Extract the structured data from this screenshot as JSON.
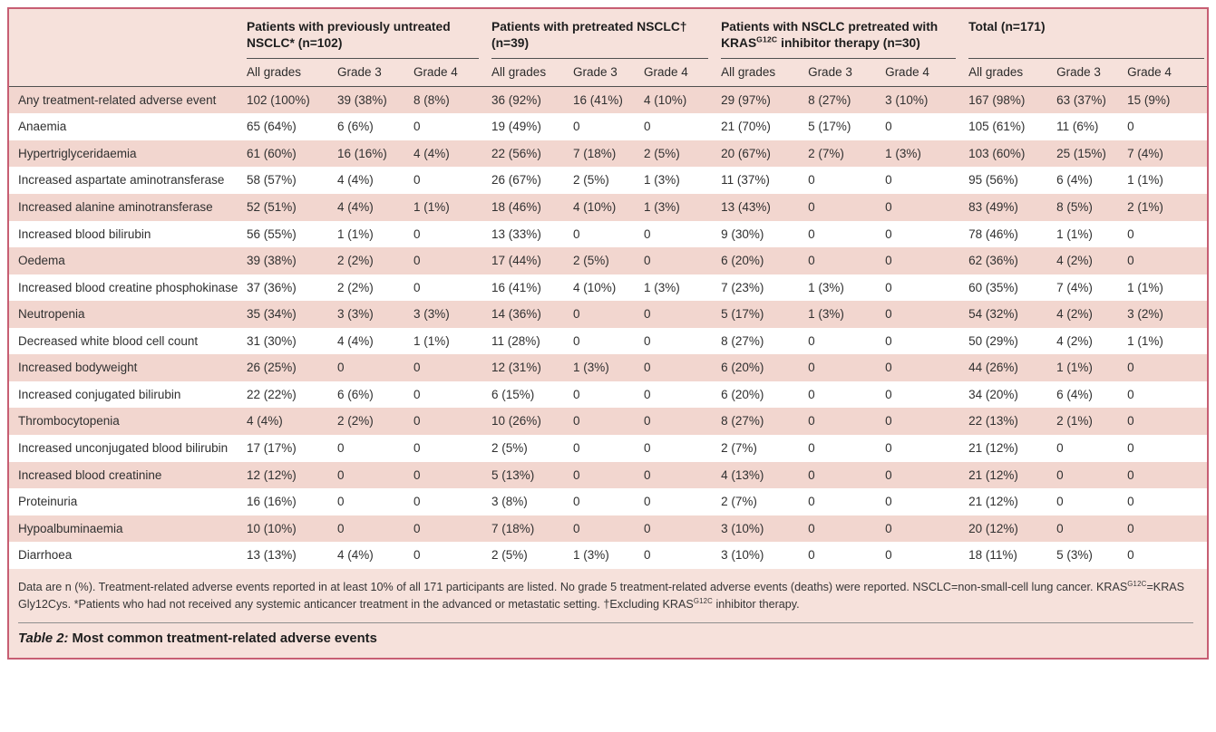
{
  "theme": {
    "panel_bg": "#F6E1DB",
    "stripe_bg": "#F2D6CF",
    "row_bg": "#FFFFFF",
    "border": "#C75E73",
    "rule_dark": "#4F4F4F",
    "rule_gray": "#8E8E8E",
    "text": "#303030"
  },
  "table": {
    "groups": [
      {
        "title": "Patients with previously untreated NSCLC* (n=102)"
      },
      {
        "title": "Patients with pretreated NSCLC† (n=39)"
      },
      {
        "title": "Patients with NSCLC pretreated with KRAS^{G12C} inhibitor therapy (n=30)"
      },
      {
        "title": "Total (n=171)"
      }
    ],
    "subheaders": [
      "All grades",
      "Grade 3",
      "Grade 4"
    ],
    "rows": [
      {
        "label": "Any treatment-related adverse event",
        "values": [
          "102 (100%)",
          "39 (38%)",
          "8 (8%)",
          "36 (92%)",
          "16 (41%)",
          "4 (10%)",
          "29 (97%)",
          "8 (27%)",
          "3 (10%)",
          "167 (98%)",
          "63 (37%)",
          "15 (9%)"
        ]
      },
      {
        "label": "Anaemia",
        "values": [
          "65 (64%)",
          "6 (6%)",
          "0",
          "19 (49%)",
          "0",
          "0",
          "21 (70%)",
          "5 (17%)",
          "0",
          "105 (61%)",
          "11 (6%)",
          "0"
        ]
      },
      {
        "label": "Hypertriglyceridaemia",
        "values": [
          "61 (60%)",
          "16 (16%)",
          "4 (4%)",
          "22 (56%)",
          "7 (18%)",
          "2 (5%)",
          "20 (67%)",
          "2 (7%)",
          "1 (3%)",
          "103 (60%)",
          "25 (15%)",
          "7 (4%)"
        ]
      },
      {
        "label": "Increased aspartate aminotransferase",
        "values": [
          "58 (57%)",
          "4 (4%)",
          "0",
          "26 (67%)",
          "2 (5%)",
          "1 (3%)",
          "11 (37%)",
          "0",
          "0",
          "95 (56%)",
          "6 (4%)",
          "1 (1%)"
        ]
      },
      {
        "label": "Increased alanine aminotransferase",
        "values": [
          "52 (51%)",
          "4 (4%)",
          "1 (1%)",
          "18 (46%)",
          "4 (10%)",
          "1 (3%)",
          "13 (43%)",
          "0",
          "0",
          "83 (49%)",
          "8 (5%)",
          "2 (1%)"
        ]
      },
      {
        "label": "Increased blood bilirubin",
        "values": [
          "56 (55%)",
          "1 (1%)",
          "0",
          "13 (33%)",
          "0",
          "0",
          "9 (30%)",
          "0",
          "0",
          "78 (46%)",
          "1 (1%)",
          "0"
        ]
      },
      {
        "label": "Oedema",
        "values": [
          "39 (38%)",
          "2 (2%)",
          "0",
          "17 (44%)",
          "2 (5%)",
          "0",
          "6 (20%)",
          "0",
          "0",
          "62 (36%)",
          "4 (2%)",
          "0"
        ]
      },
      {
        "label": "Increased blood creatine phosphokinase",
        "values": [
          "37 (36%)",
          "2 (2%)",
          "0",
          "16 (41%)",
          "4 (10%)",
          "1 (3%)",
          "7 (23%)",
          "1 (3%)",
          "0",
          "60 (35%)",
          "7 (4%)",
          "1 (1%)"
        ]
      },
      {
        "label": "Neutropenia",
        "values": [
          "35 (34%)",
          "3 (3%)",
          "3 (3%)",
          "14 (36%)",
          "0",
          "0",
          "5 (17%)",
          "1 (3%)",
          "0",
          "54 (32%)",
          "4 (2%)",
          "3 (2%)"
        ]
      },
      {
        "label": "Decreased white blood cell count",
        "values": [
          "31 (30%)",
          "4 (4%)",
          "1 (1%)",
          "11 (28%)",
          "0",
          "0",
          "8 (27%)",
          "0",
          "0",
          "50 (29%)",
          "4 (2%)",
          "1 (1%)"
        ]
      },
      {
        "label": "Increased bodyweight",
        "values": [
          "26 (25%)",
          "0",
          "0",
          "12 (31%)",
          "1 (3%)",
          "0",
          "6 (20%)",
          "0",
          "0",
          "44 (26%)",
          "1 (1%)",
          "0"
        ]
      },
      {
        "label": "Increased conjugated bilirubin",
        "values": [
          "22 (22%)",
          "6 (6%)",
          "0",
          "6 (15%)",
          "0",
          "0",
          "6 (20%)",
          "0",
          "0",
          "34 (20%)",
          "6 (4%)",
          "0"
        ]
      },
      {
        "label": "Thrombocytopenia",
        "values": [
          "4 (4%)",
          "2 (2%)",
          "0",
          "10 (26%)",
          "0",
          "0",
          "8 (27%)",
          "0",
          "0",
          "22 (13%)",
          "2 (1%)",
          "0"
        ]
      },
      {
        "label": "Increased unconjugated blood bilirubin",
        "values": [
          "17 (17%)",
          "0",
          "0",
          "2 (5%)",
          "0",
          "0",
          "2 (7%)",
          "0",
          "0",
          "21 (12%)",
          "0",
          "0"
        ]
      },
      {
        "label": "Increased blood creatinine",
        "values": [
          "12 (12%)",
          "0",
          "0",
          "5 (13%)",
          "0",
          "0",
          "4 (13%)",
          "0",
          "0",
          "21 (12%)",
          "0",
          "0"
        ]
      },
      {
        "label": "Proteinuria",
        "values": [
          "16 (16%)",
          "0",
          "0",
          "3 (8%)",
          "0",
          "0",
          "2 (7%)",
          "0",
          "0",
          "21 (12%)",
          "0",
          "0"
        ]
      },
      {
        "label": "Hypoalbuminaemia",
        "values": [
          "10 (10%)",
          "0",
          "0",
          "7 (18%)",
          "0",
          "0",
          "3 (10%)",
          "0",
          "0",
          "20 (12%)",
          "0",
          "0"
        ]
      },
      {
        "label": "Diarrhoea",
        "values": [
          "13 (13%)",
          "4 (4%)",
          "0",
          "2 (5%)",
          "1 (3%)",
          "0",
          "3 (10%)",
          "0",
          "0",
          "18 (11%)",
          "5 (3%)",
          "0"
        ]
      }
    ],
    "footnote": "Data are n (%). Treatment-related adverse events reported in at least 10% of all 171 participants are listed. No grade 5 treatment-related adverse events (deaths) were reported. NSCLC=non-small-cell lung cancer. KRAS^{G12C}=KRAS Gly12Cys. *Patients who had not received any systemic anticancer treatment in the advanced or metastatic setting. †Excluding KRAS^{G12C} inhibitor therapy.",
    "caption": {
      "label": "Table 2:",
      "text": " Most common treatment-related adverse events"
    }
  }
}
